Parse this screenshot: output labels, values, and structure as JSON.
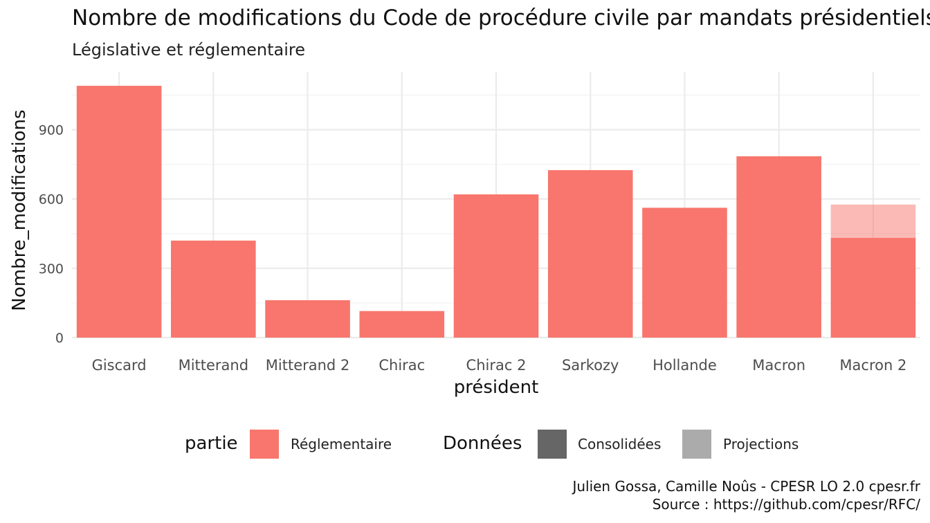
{
  "chart_data": {
    "type": "bar",
    "title": "Nombre de modifications du Code de procédure civile par mandats présidentiels",
    "subtitle": "Législative et réglementaire",
    "xlabel": "président",
    "ylabel": "Nombre_modifications",
    "categories": [
      "Giscard",
      "Mitterand",
      "Mitterand 2",
      "Chirac",
      "Chirac 2",
      "Sarkozy",
      "Hollande",
      "Macron",
      "Macron 2"
    ],
    "series": [
      {
        "name": "Consolidées",
        "values": [
          1090,
          420,
          162,
          115,
          620,
          725,
          562,
          785,
          432
        ]
      },
      {
        "name": "Projections",
        "values": [
          0,
          0,
          0,
          0,
          0,
          0,
          0,
          0,
          144
        ]
      }
    ],
    "ylim": [
      0,
      1150
    ],
    "yticks": [
      0,
      300,
      600,
      900
    ],
    "grid": true,
    "bar_color": "#F8766D",
    "legend": {
      "position": "bottom",
      "partie_title": "partie",
      "partie_items": [
        {
          "label": "Réglementaire",
          "color": "#F8766D"
        }
      ],
      "donnees_title": "Données",
      "donnees_items": [
        {
          "label": "Consolidées",
          "color": "#666666"
        },
        {
          "label": "Projections",
          "color": "#ABABAB"
        }
      ]
    },
    "caption": [
      "Julien Gossa, Camille Noûs - CPESR LO 2.0 cpesr.fr",
      "Source : https://github.com/cpesr/RFC/"
    ]
  }
}
